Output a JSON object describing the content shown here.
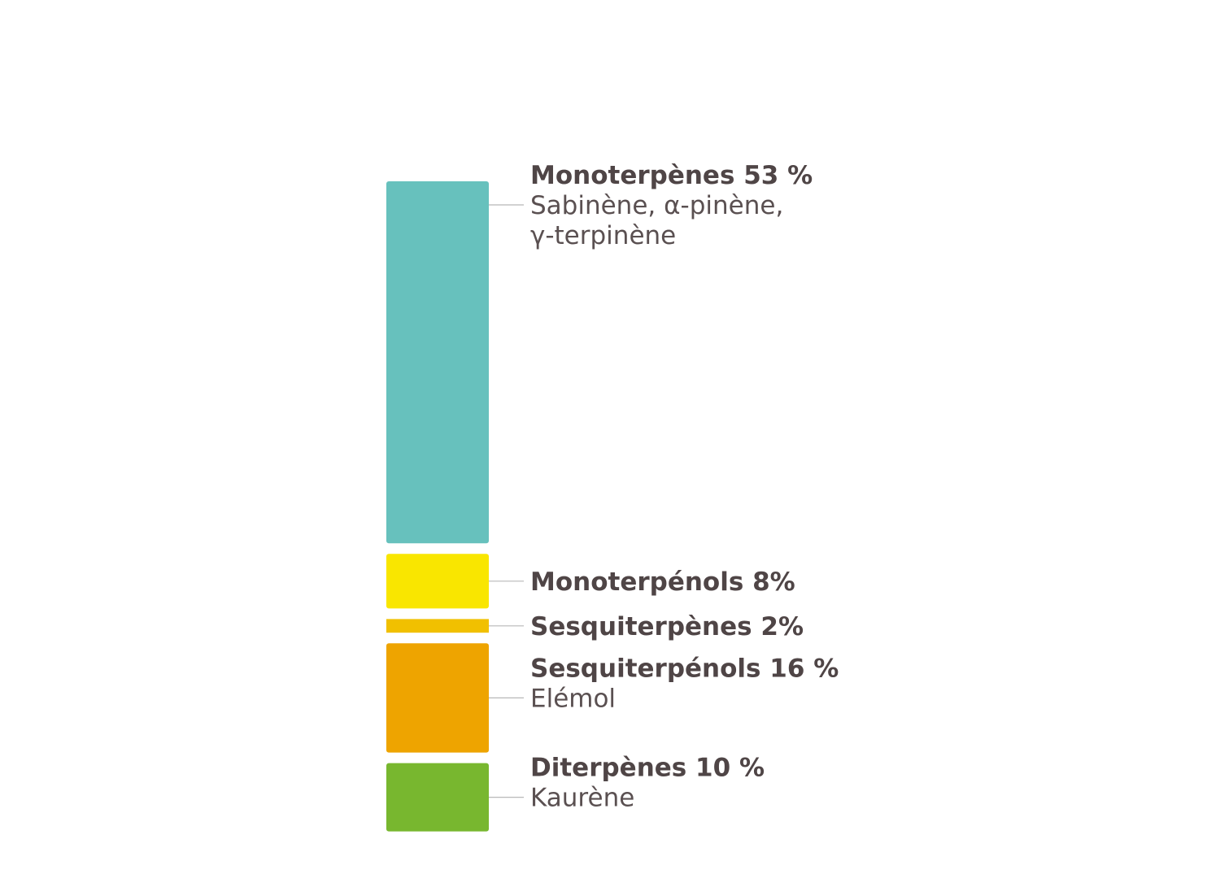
{
  "chart_data": {
    "type": "bar",
    "orientation": "stacked-vertical-segments",
    "segments": [
      {
        "name": "Monoterpènes",
        "value": 53,
        "label": "Monoterpènes  53 %",
        "detail": [
          "Sabinène, α-pinène,",
          "γ-terpinène"
        ],
        "color": "#67c1bd"
      },
      {
        "name": "Monoterpénols",
        "value": 8,
        "label": "Monoterpénols 8%",
        "detail": [],
        "color": "#f9e600"
      },
      {
        "name": "Sesquiterpènes",
        "value": 2,
        "label": "Sesquiterpènes 2%",
        "detail": [],
        "color": "#f1c000"
      },
      {
        "name": "Sesquiterpénols",
        "value": 16,
        "label": "Sesquiterpénols  16 %",
        "detail": [
          "Elémol"
        ],
        "color": "#eea400"
      },
      {
        "name": "Diterpènes",
        "value": 10,
        "label": "Diterpènes 10 %",
        "detail": [
          "Kaurène"
        ],
        "color": "#78b72f"
      }
    ]
  }
}
